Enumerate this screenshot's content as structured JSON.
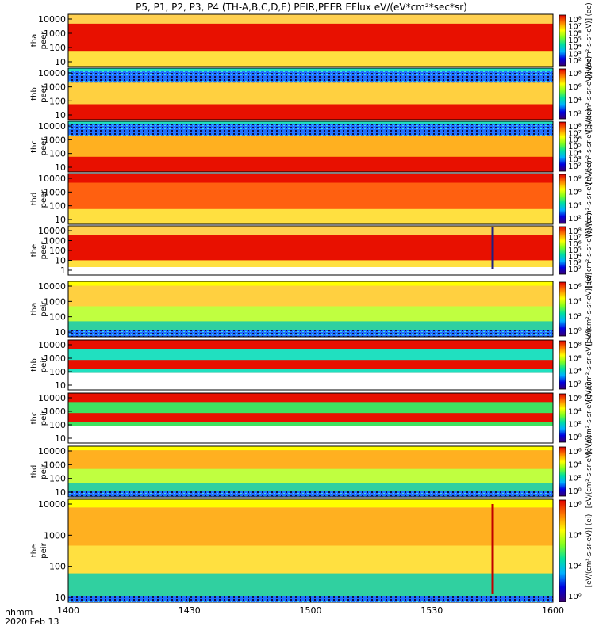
{
  "figure": {
    "title": "P5, P1, P2, P3, P4 (TH-A,B,C,D,E) PEIR,PEER EFlux eV/(eV*cm²*sec*sr)",
    "footer": {
      "label": "hhmm",
      "date": "2020 Feb 13"
    },
    "x_ticks": [
      "1400",
      "1430",
      "1500",
      "1530",
      "1600"
    ]
  },
  "chart_data": {
    "type": "heatmap",
    "x_axis": {
      "unit": "hhmm",
      "range": [
        "1400",
        "1600"
      ],
      "date": "2020 Feb 13"
    },
    "y_scale": "log",
    "panels": [
      {
        "ylabel": [
          "tha",
          "peer"
        ],
        "yticks": [
          "10000",
          "1000",
          "100",
          "10"
        ],
        "cbar_ticks": [
          "10⁸",
          "10⁷",
          "10⁶",
          "10⁵",
          "10⁴",
          "10³",
          "10²"
        ],
        "cbar_title": "[eV/(cm²-s-sr-eV)] (ee)",
        "colors": {
          "low_energy": "#ffe040",
          "mid_energy": "#e81000",
          "high_energy": "#ffd050",
          "gap": "#ffffff"
        }
      },
      {
        "ylabel": [
          "thb",
          "peer"
        ],
        "yticks": [
          "10000",
          "1000",
          "100",
          "10"
        ],
        "cbar_ticks": [
          "10⁸",
          "10⁶",
          "10⁴",
          "10²"
        ],
        "cbar_title": "[eV/(cm²-s-sr-eV)] (ee)",
        "colors": {
          "low_energy": "#e81000",
          "mid_energy": "#ffd040",
          "high_energy": "#20e0c0",
          "gap": "#ffffff"
        }
      },
      {
        "ylabel": [
          "thc",
          "peer"
        ],
        "yticks": [
          "10000",
          "1000",
          "100",
          "10"
        ],
        "cbar_ticks": [
          "10⁸",
          "10⁷",
          "10⁶",
          "10⁵",
          "10⁴",
          "10³",
          "10²"
        ],
        "cbar_title": "[eV/(cm²-s-sr-eV)] (ee)",
        "colors": {
          "low_energy": "#e81000",
          "mid_energy": "#ffb020",
          "high_energy": "#20e0c0",
          "gap": "#ffffff"
        }
      },
      {
        "ylabel": [
          "thd",
          "peer"
        ],
        "yticks": [
          "10000",
          "1000",
          "100",
          "10"
        ],
        "cbar_ticks": [
          "10⁸",
          "10⁶",
          "10⁴",
          "10²"
        ],
        "cbar_title": "[eV/(cm²-s-sr-eV)] (ee)",
        "colors": {
          "low_energy": "#ffe040",
          "mid_energy": "#ff6010",
          "high_energy": "#e81000",
          "gap": "#ffffff"
        }
      },
      {
        "ylabel": [
          "the",
          "peer"
        ],
        "yticks": [
          "10000",
          "1000",
          "100",
          "10",
          "1"
        ],
        "cbar_ticks": [
          "10⁸",
          "10⁷",
          "10⁶",
          "10⁵",
          "10⁴",
          "10³",
          "10²"
        ],
        "cbar_title": "[eV/(cm²-s-sr-eV)] (ee)",
        "colors": {
          "low_energy": "#ffe040",
          "mid_energy": "#e81000",
          "high_energy": "#ffd050",
          "gap": "#ffffff"
        }
      },
      {
        "ylabel": [
          "tha",
          "peir"
        ],
        "yticks": [
          "10000",
          "1000",
          "100",
          "10"
        ],
        "cbar_ticks": [
          "10⁶",
          "10⁴",
          "10²",
          "10⁰"
        ],
        "cbar_title": "[eV/(cm²-s-sr-eV)] (ei)",
        "colors": {
          "low_energy": "#30d0a0",
          "mid_energy": "#c0ff40",
          "high_energy": "#ffd040",
          "gap": "#ffffff"
        }
      },
      {
        "ylabel": [
          "thb",
          "peir"
        ],
        "yticks": [
          "10000",
          "1000",
          "100",
          "10"
        ],
        "cbar_ticks": [
          "10⁸",
          "10⁶",
          "10⁴",
          "10²"
        ],
        "cbar_title": "[eV/(cm²-s-sr-eV)] (ei)",
        "colors": {
          "low_energy": "#ffffff",
          "mid_energy": "#e81000",
          "high_energy": "#20e0c0",
          "gap": "#ffffff"
        }
      },
      {
        "ylabel": [
          "thc",
          "peir"
        ],
        "yticks": [
          "10000",
          "1000",
          "100",
          "10"
        ],
        "cbar_ticks": [
          "10⁶",
          "10⁴",
          "10²",
          "10⁰"
        ],
        "cbar_title": "[eV/(cm²-s-sr-eV)] (ei)",
        "colors": {
          "low_energy": "#ffffff",
          "mid_energy": "#e81000",
          "high_energy": "#40e060",
          "gap": "#ffffff"
        }
      },
      {
        "ylabel": [
          "thd",
          "peir"
        ],
        "yticks": [
          "10000",
          "1000",
          "100",
          "10"
        ],
        "cbar_ticks": [
          "10⁶",
          "10⁴",
          "10²",
          "10⁰"
        ],
        "cbar_title": "[eV/(cm²-s-sr-eV)] (ei)",
        "colors": {
          "low_energy": "#30d0a0",
          "mid_energy": "#c0ff40",
          "high_energy": "#ffb020",
          "gap": "#ffffff"
        }
      },
      {
        "ylabel": [
          "the",
          "peir"
        ],
        "yticks": [
          "10000",
          "1000",
          "100",
          "10"
        ],
        "cbar_ticks": [
          "10⁶",
          "10⁴",
          "10²",
          "10⁰"
        ],
        "cbar_title": "[eV/(cm²-s-sr-eV)] (ei)",
        "colors": {
          "low_energy": "#30d0a0",
          "mid_energy": "#ffe040",
          "high_energy": "#ffb020",
          "gap": "#ffffff"
        }
      }
    ]
  }
}
